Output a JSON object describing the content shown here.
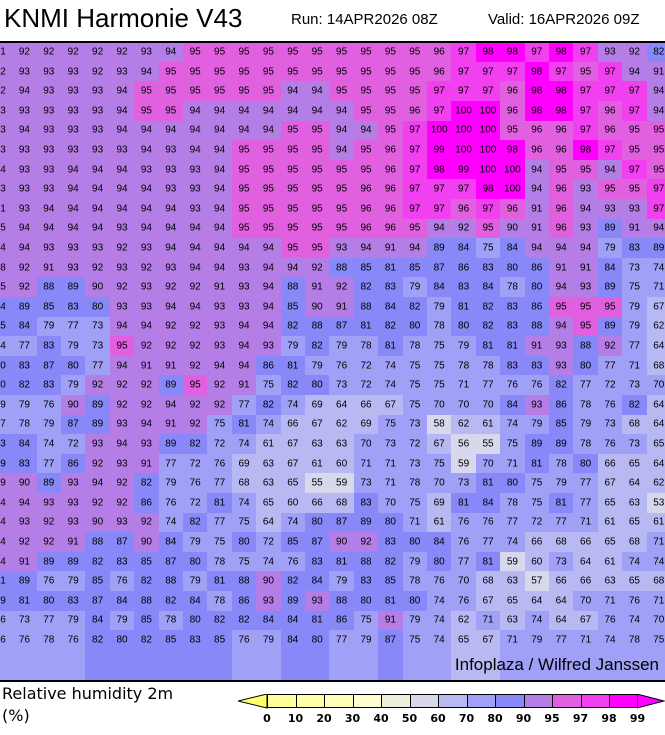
{
  "header": {
    "title": "KNMI Harmonie V43",
    "run": "Run: 14APR2026 08Z",
    "valid": "Valid: 16APR2026 09Z"
  },
  "credit": "Infoplaza / Wilfred Janssen",
  "legend": {
    "label": "Relative humidity 2m",
    "unit": "(%)",
    "ticks": [
      "0",
      "10",
      "20",
      "30",
      "40",
      "50",
      "60",
      "70",
      "80",
      "90",
      "95",
      "97",
      "98",
      "99"
    ],
    "colors": [
      "#ffff99",
      "#ffffa8",
      "#ffffbb",
      "#ffffd2",
      "#eeeedc",
      "#d8d8ec",
      "#b8b8f2",
      "#a0a0f6",
      "#8888f8",
      "#b47ee6",
      "#e060e0",
      "#f040f0",
      "#ff00ff"
    ],
    "under_color": "#ffff66",
    "over_color": "#ff00ff"
  },
  "grid": [
    [
      "1",
      "92",
      "92",
      "92",
      "92",
      "92",
      "93",
      "94",
      "95",
      "95",
      "95",
      "95",
      "95",
      "95",
      "95",
      "95",
      "95",
      "95",
      "96",
      "97",
      "98",
      "98",
      "97",
      "98",
      "97",
      "93",
      "92",
      "82"
    ],
    [
      "2",
      "93",
      "93",
      "93",
      "92",
      "93",
      "94",
      "95",
      "95",
      "95",
      "95",
      "95",
      "95",
      "95",
      "95",
      "95",
      "95",
      "95",
      "96",
      "97",
      "97",
      "97",
      "98",
      "97",
      "95",
      "97",
      "94",
      "91"
    ],
    [
      "2",
      "94",
      "93",
      "93",
      "93",
      "94",
      "95",
      "95",
      "95",
      "95",
      "95",
      "95",
      "94",
      "94",
      "95",
      "95",
      "95",
      "95",
      "97",
      "97",
      "97",
      "96",
      "98",
      "98",
      "97",
      "97",
      "97",
      "94"
    ],
    [
      "3",
      "93",
      "93",
      "93",
      "93",
      "94",
      "95",
      "95",
      "94",
      "94",
      "94",
      "94",
      "94",
      "94",
      "94",
      "95",
      "95",
      "96",
      "97",
      "100",
      "100",
      "96",
      "98",
      "98",
      "97",
      "96",
      "97",
      "94"
    ],
    [
      "3",
      "94",
      "93",
      "93",
      "93",
      "94",
      "94",
      "94",
      "94",
      "94",
      "94",
      "94",
      "95",
      "95",
      "94",
      "94",
      "95",
      "97",
      "100",
      "100",
      "100",
      "95",
      "96",
      "96",
      "97",
      "96",
      "95",
      "95"
    ],
    [
      "3",
      "93",
      "93",
      "93",
      "93",
      "93",
      "94",
      "93",
      "94",
      "94",
      "95",
      "95",
      "95",
      "95",
      "94",
      "95",
      "96",
      "97",
      "99",
      "100",
      "100",
      "98",
      "96",
      "96",
      "98",
      "97",
      "95",
      "95"
    ],
    [
      "4",
      "93",
      "93",
      "94",
      "94",
      "94",
      "93",
      "93",
      "93",
      "94",
      "95",
      "95",
      "95",
      "95",
      "95",
      "95",
      "96",
      "97",
      "98",
      "99",
      "100",
      "100",
      "94",
      "95",
      "95",
      "94",
      "97",
      "95"
    ],
    [
      "3",
      "93",
      "93",
      "94",
      "94",
      "94",
      "94",
      "93",
      "93",
      "94",
      "95",
      "95",
      "95",
      "95",
      "95",
      "96",
      "96",
      "97",
      "97",
      "97",
      "98",
      "100",
      "94",
      "96",
      "93",
      "95",
      "95",
      "97"
    ],
    [
      "1",
      "93",
      "94",
      "94",
      "94",
      "94",
      "94",
      "94",
      "93",
      "94",
      "95",
      "95",
      "95",
      "95",
      "95",
      "96",
      "96",
      "97",
      "97",
      "96",
      "97",
      "96",
      "91",
      "96",
      "94",
      "93",
      "93",
      "97"
    ],
    [
      "5",
      "94",
      "94",
      "94",
      "94",
      "93",
      "94",
      "94",
      "94",
      "94",
      "95",
      "95",
      "95",
      "95",
      "95",
      "96",
      "96",
      "95",
      "94",
      "92",
      "95",
      "90",
      "91",
      "96",
      "93",
      "89",
      "91",
      "94"
    ],
    [
      "4",
      "94",
      "93",
      "93",
      "93",
      "92",
      "93",
      "94",
      "94",
      "94",
      "94",
      "94",
      "95",
      "95",
      "93",
      "94",
      "91",
      "94",
      "89",
      "84",
      "75",
      "84",
      "94",
      "94",
      "94",
      "79",
      "83",
      "89"
    ],
    [
      "8",
      "92",
      "91",
      "93",
      "92",
      "93",
      "92",
      "93",
      "94",
      "94",
      "93",
      "94",
      "94",
      "92",
      "88",
      "85",
      "81",
      "85",
      "87",
      "86",
      "83",
      "80",
      "86",
      "91",
      "91",
      "84",
      "73",
      "74"
    ],
    [
      "5",
      "92",
      "88",
      "89",
      "90",
      "92",
      "93",
      "92",
      "92",
      "91",
      "93",
      "94",
      "88",
      "91",
      "92",
      "82",
      "83",
      "79",
      "84",
      "83",
      "84",
      "78",
      "80",
      "94",
      "93",
      "89",
      "75",
      "71"
    ],
    [
      "4",
      "89",
      "85",
      "83",
      "80",
      "93",
      "93",
      "94",
      "94",
      "93",
      "93",
      "94",
      "85",
      "90",
      "91",
      "88",
      "84",
      "82",
      "79",
      "81",
      "82",
      "83",
      "86",
      "95",
      "95",
      "95",
      "79",
      "67"
    ],
    [
      "5",
      "84",
      "79",
      "77",
      "73",
      "94",
      "94",
      "92",
      "92",
      "93",
      "94",
      "94",
      "82",
      "88",
      "87",
      "81",
      "82",
      "80",
      "78",
      "80",
      "82",
      "83",
      "88",
      "94",
      "95",
      "89",
      "79",
      "62"
    ],
    [
      "4",
      "77",
      "83",
      "79",
      "73",
      "95",
      "92",
      "92",
      "92",
      "93",
      "94",
      "93",
      "79",
      "82",
      "79",
      "78",
      "81",
      "78",
      "75",
      "79",
      "81",
      "81",
      "91",
      "93",
      "88",
      "92",
      "77",
      "64"
    ],
    [
      "0",
      "83",
      "87",
      "80",
      "77",
      "94",
      "91",
      "91",
      "92",
      "94",
      "94",
      "86",
      "81",
      "79",
      "76",
      "72",
      "74",
      "75",
      "75",
      "78",
      "78",
      "83",
      "83",
      "93",
      "80",
      "77",
      "71",
      "68"
    ],
    [
      "0",
      "82",
      "83",
      "79",
      "92",
      "92",
      "92",
      "89",
      "95",
      "92",
      "91",
      "75",
      "82",
      "80",
      "73",
      "72",
      "74",
      "75",
      "75",
      "71",
      "77",
      "76",
      "76",
      "82",
      "77",
      "72",
      "73",
      "70"
    ],
    [
      "9",
      "79",
      "76",
      "90",
      "89",
      "92",
      "92",
      "94",
      "92",
      "92",
      "77",
      "82",
      "74",
      "69",
      "64",
      "66",
      "67",
      "75",
      "70",
      "70",
      "70",
      "84",
      "93",
      "86",
      "78",
      "76",
      "82",
      "64"
    ],
    [
      "7",
      "78",
      "79",
      "87",
      "89",
      "93",
      "94",
      "91",
      "92",
      "75",
      "81",
      "74",
      "66",
      "67",
      "62",
      "69",
      "75",
      "73",
      "58",
      "62",
      "61",
      "74",
      "79",
      "85",
      "79",
      "73",
      "68",
      "64"
    ],
    [
      "3",
      "84",
      "74",
      "72",
      "93",
      "94",
      "93",
      "89",
      "82",
      "72",
      "74",
      "61",
      "67",
      "63",
      "63",
      "70",
      "73",
      "72",
      "67",
      "56",
      "55",
      "75",
      "89",
      "89",
      "78",
      "76",
      "73",
      "65"
    ],
    [
      "9",
      "83",
      "77",
      "86",
      "92",
      "93",
      "91",
      "77",
      "72",
      "76",
      "69",
      "63",
      "67",
      "61",
      "60",
      "71",
      "71",
      "73",
      "75",
      "59",
      "70",
      "71",
      "81",
      "78",
      "80",
      "66",
      "65",
      "64"
    ],
    [
      "9",
      "90",
      "89",
      "93",
      "94",
      "92",
      "82",
      "79",
      "76",
      "77",
      "68",
      "63",
      "65",
      "55",
      "59",
      "73",
      "71",
      "78",
      "70",
      "73",
      "81",
      "80",
      "75",
      "79",
      "77",
      "67",
      "64",
      "62"
    ],
    [
      "4",
      "94",
      "93",
      "93",
      "92",
      "92",
      "86",
      "76",
      "72",
      "81",
      "74",
      "65",
      "60",
      "66",
      "68",
      "83",
      "70",
      "75",
      "69",
      "81",
      "84",
      "78",
      "75",
      "81",
      "77",
      "65",
      "63",
      "53"
    ],
    [
      "4",
      "93",
      "92",
      "93",
      "90",
      "93",
      "92",
      "74",
      "82",
      "77",
      "75",
      "64",
      "74",
      "80",
      "87",
      "89",
      "80",
      "71",
      "61",
      "76",
      "76",
      "77",
      "72",
      "77",
      "71",
      "61",
      "65",
      "61"
    ],
    [
      "4",
      "92",
      "92",
      "91",
      "88",
      "87",
      "90",
      "84",
      "79",
      "75",
      "80",
      "72",
      "85",
      "87",
      "90",
      "92",
      "83",
      "80",
      "84",
      "76",
      "77",
      "74",
      "66",
      "68",
      "66",
      "65",
      "68",
      "71"
    ],
    [
      "4",
      "91",
      "89",
      "89",
      "82",
      "83",
      "85",
      "87",
      "80",
      "78",
      "75",
      "74",
      "76",
      "83",
      "81",
      "88",
      "82",
      "79",
      "80",
      "77",
      "81",
      "59",
      "60",
      "73",
      "64",
      "61",
      "74",
      "74"
    ],
    [
      "1",
      "89",
      "76",
      "79",
      "85",
      "76",
      "82",
      "88",
      "79",
      "81",
      "88",
      "90",
      "82",
      "84",
      "79",
      "83",
      "85",
      "78",
      "76",
      "70",
      "68",
      "63",
      "57",
      "66",
      "66",
      "63",
      "65",
      "68"
    ],
    [
      "9",
      "81",
      "80",
      "83",
      "87",
      "84",
      "88",
      "82",
      "84",
      "78",
      "86",
      "93",
      "89",
      "93",
      "88",
      "80",
      "81",
      "80",
      "74",
      "76",
      "67",
      "65",
      "64",
      "64",
      "70",
      "71",
      "76",
      "71"
    ],
    [
      "6",
      "73",
      "77",
      "79",
      "84",
      "79",
      "85",
      "78",
      "80",
      "82",
      "82",
      "84",
      "84",
      "81",
      "86",
      "75",
      "91",
      "79",
      "74",
      "62",
      "71",
      "63",
      "74",
      "64",
      "67",
      "76",
      "74",
      "70"
    ],
    [
      "6",
      "76",
      "78",
      "76",
      "82",
      "80",
      "82",
      "85",
      "83",
      "85",
      "76",
      "79",
      "84",
      "80",
      "77",
      "79",
      "87",
      "75",
      "74",
      "65",
      "67",
      "71",
      "79",
      "77",
      "71",
      "74",
      "78",
      "75"
    ]
  ]
}
